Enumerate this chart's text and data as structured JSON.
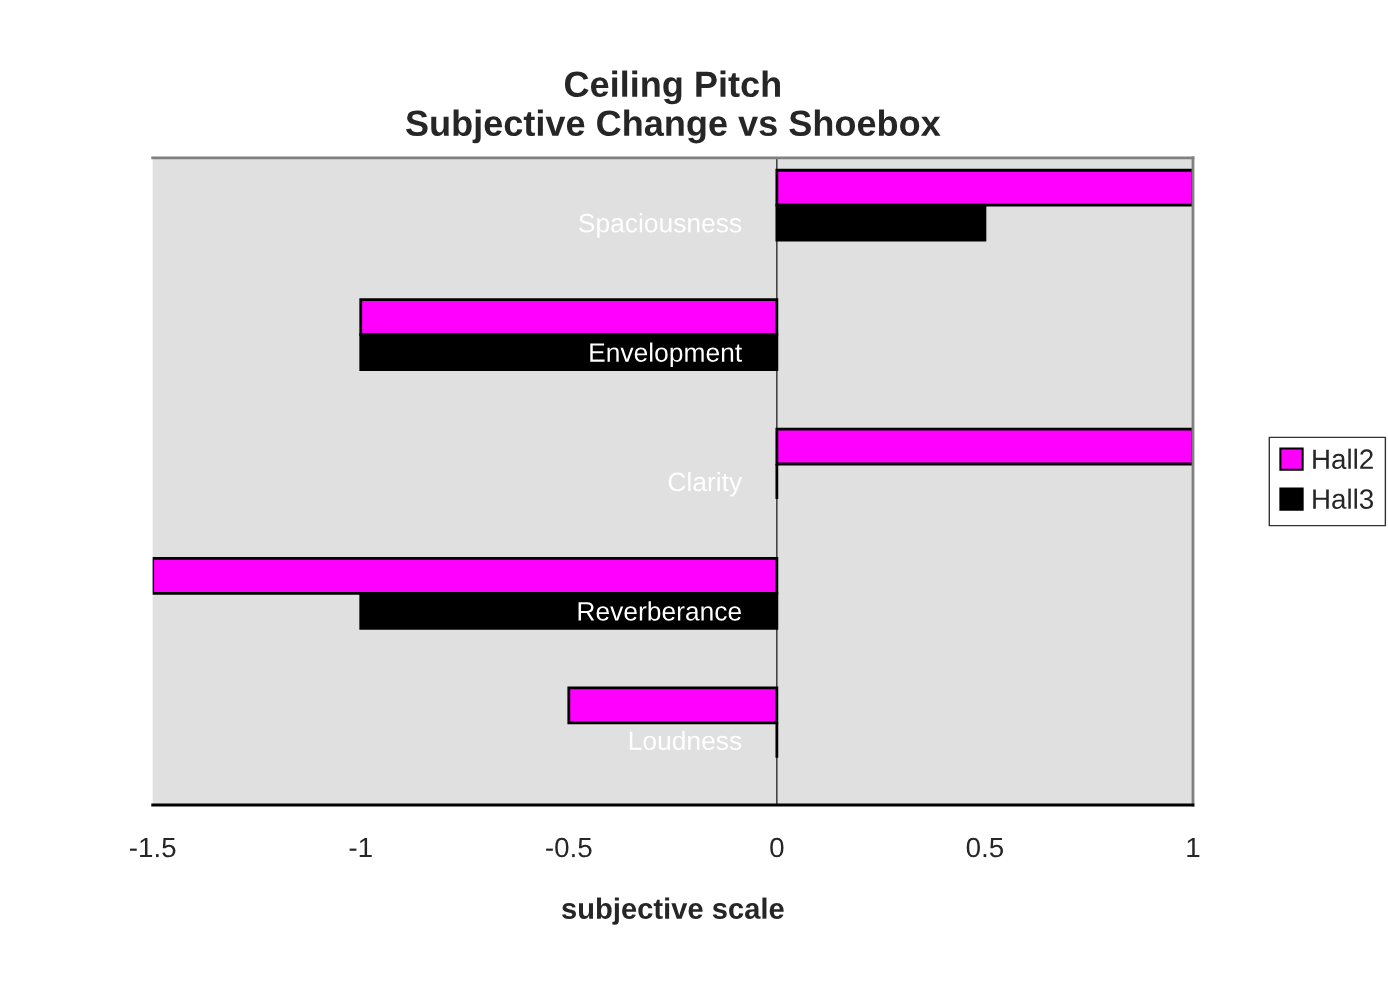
{
  "chart_data": {
    "type": "bar",
    "orientation": "horizontal",
    "title": "Ceiling Pitch\nSubjective Change vs Shoebox",
    "xlabel": "subjective scale",
    "categories": [
      "Spaciousness",
      "Envelopment",
      "Clarity",
      "Reverberance",
      "Loudness"
    ],
    "series": [
      {
        "name": "Hall2",
        "color": "#ff00ff",
        "values": [
          1,
          -1,
          1,
          -1.5,
          -0.5
        ]
      },
      {
        "name": "Hall3",
        "color": "#000000",
        "values": [
          0.5,
          -1,
          0,
          -1,
          0
        ]
      }
    ],
    "xlim": [
      -1.5,
      1
    ],
    "xticks": [
      -1.5,
      -1,
      -0.5,
      0,
      0.5,
      1
    ],
    "grid": false,
    "legend": "right"
  }
}
